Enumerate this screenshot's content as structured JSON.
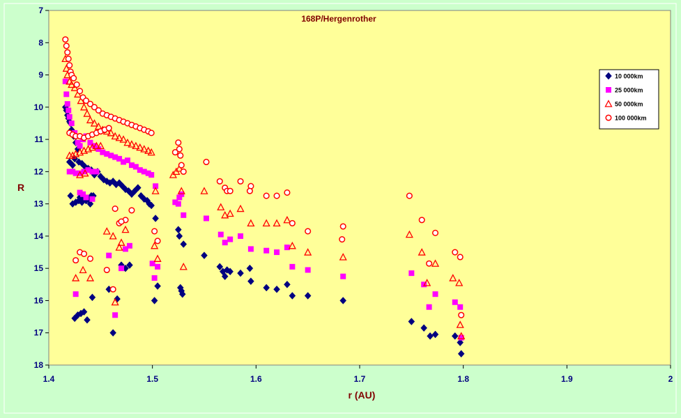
{
  "colors": {
    "chart_area": "#ccffcc",
    "plot_area": "#ffff99",
    "text": "#800000",
    "axis_text": "#000080",
    "series": [
      "#000080",
      "#ff00ff",
      "#ff0000",
      "#ff0000"
    ]
  },
  "chart_data": {
    "type": "scatter",
    "title": "168P/Hergenrother",
    "xlabel": "r (AU)",
    "ylabel": "R",
    "xlim": [
      1.4,
      2.0
    ],
    "ylim": [
      7,
      18
    ],
    "y_inverted": true,
    "x_ticks": [
      "1.4",
      "1.5",
      "1.6",
      "1.7",
      "1.8",
      "1.9",
      "2"
    ],
    "y_ticks": [
      "7",
      "8",
      "9",
      "10",
      "11",
      "12",
      "13",
      "14",
      "15",
      "16",
      "17",
      "18"
    ],
    "grid": false,
    "legend_position": "top-right",
    "series": [
      {
        "name": "10 000km",
        "marker": "diamond",
        "x": [
          1.416,
          1.417,
          1.418,
          1.419,
          1.42,
          1.421,
          1.422,
          1.424,
          1.426,
          1.428,
          1.42,
          1.423,
          1.425,
          1.429,
          1.432,
          1.435,
          1.438,
          1.441,
          1.444,
          1.447,
          1.45,
          1.453,
          1.456,
          1.459,
          1.462,
          1.465,
          1.468,
          1.471,
          1.474,
          1.477,
          1.48,
          1.483,
          1.486,
          1.489,
          1.492,
          1.495,
          1.497,
          1.499,
          1.43,
          1.433,
          1.436,
          1.44,
          1.443,
          1.421,
          1.423,
          1.426,
          1.429,
          1.432,
          1.435,
          1.438,
          1.441,
          1.425,
          1.428,
          1.431,
          1.434,
          1.437,
          1.442,
          1.458,
          1.462,
          1.466,
          1.47,
          1.474,
          1.478,
          1.503,
          1.505,
          1.502,
          1.525,
          1.526,
          1.527,
          1.528,
          1.529,
          1.53,
          1.55,
          1.565,
          1.568,
          1.57,
          1.572,
          1.575,
          1.585,
          1.595,
          1.594,
          1.61,
          1.62,
          1.63,
          1.635,
          1.65,
          1.684,
          1.75,
          1.762,
          1.768,
          1.773,
          1.792,
          1.797,
          1.798
        ],
        "y": [
          10.0,
          10.1,
          10.25,
          10.35,
          10.45,
          10.5,
          10.7,
          10.9,
          11.1,
          11.3,
          11.7,
          11.8,
          11.6,
          11.7,
          11.75,
          11.85,
          11.9,
          11.95,
          12.1,
          12.0,
          12.15,
          12.25,
          12.3,
          12.35,
          12.3,
          12.4,
          12.35,
          12.45,
          12.55,
          12.6,
          12.7,
          12.6,
          12.5,
          12.75,
          12.85,
          12.9,
          13.0,
          13.05,
          12.8,
          12.85,
          12.9,
          13.0,
          12.75,
          12.75,
          13.0,
          12.95,
          12.9,
          12.95,
          12.85,
          12.85,
          12.75,
          16.55,
          16.45,
          16.4,
          16.35,
          16.6,
          15.9,
          15.65,
          17.0,
          15.95,
          14.9,
          15.0,
          14.9,
          13.45,
          15.55,
          16.0,
          13.8,
          14.0,
          15.6,
          15.7,
          15.8,
          14.25,
          14.6,
          14.95,
          15.1,
          15.25,
          15.05,
          15.1,
          15.15,
          15.4,
          15.0,
          15.6,
          15.65,
          15.5,
          15.85,
          15.85,
          16.0,
          16.65,
          16.85,
          17.1,
          17.05,
          17.1,
          17.3,
          17.65
        ]
      },
      {
        "name": "25 000km",
        "marker": "square",
        "x": [
          1.416,
          1.417,
          1.418,
          1.419,
          1.42,
          1.422,
          1.425,
          1.428,
          1.43,
          1.433,
          1.436,
          1.44,
          1.444,
          1.448,
          1.452,
          1.456,
          1.46,
          1.464,
          1.468,
          1.472,
          1.476,
          1.48,
          1.484,
          1.488,
          1.492,
          1.496,
          1.499,
          1.42,
          1.423,
          1.426,
          1.43,
          1.434,
          1.438,
          1.442,
          1.446,
          1.43,
          1.433,
          1.436,
          1.442,
          1.426,
          1.458,
          1.464,
          1.47,
          1.474,
          1.478,
          1.5,
          1.502,
          1.505,
          1.503,
          1.522,
          1.525,
          1.526,
          1.528,
          1.53,
          1.552,
          1.566,
          1.57,
          1.575,
          1.585,
          1.595,
          1.61,
          1.62,
          1.63,
          1.635,
          1.65,
          1.684,
          1.75,
          1.762,
          1.767,
          1.773,
          1.792,
          1.797,
          1.798
        ],
        "y": [
          9.2,
          9.6,
          9.9,
          10.1,
          10.3,
          10.5,
          10.8,
          11.1,
          11.2,
          11.0,
          10.9,
          11.1,
          11.2,
          11.3,
          11.4,
          11.45,
          11.5,
          11.55,
          11.6,
          11.7,
          11.65,
          11.8,
          11.85,
          11.95,
          12.0,
          12.05,
          12.1,
          12.0,
          12.0,
          12.05,
          12.05,
          12.0,
          11.95,
          12.0,
          12.0,
          12.65,
          12.7,
          12.8,
          12.85,
          15.8,
          14.6,
          16.45,
          15.0,
          14.4,
          14.3,
          14.85,
          15.3,
          14.95,
          12.45,
          12.95,
          13.0,
          12.8,
          12.7,
          13.35,
          13.45,
          13.95,
          14.2,
          14.1,
          14.0,
          14.4,
          14.45,
          14.5,
          14.35,
          14.95,
          15.05,
          15.25,
          15.15,
          15.5,
          16.2,
          15.8,
          16.05,
          16.2,
          17.15
        ]
      },
      {
        "name": "50 000km",
        "marker": "triangle",
        "x": [
          1.416,
          1.417,
          1.418,
          1.42,
          1.422,
          1.425,
          1.428,
          1.431,
          1.434,
          1.437,
          1.44,
          1.444,
          1.448,
          1.452,
          1.456,
          1.46,
          1.464,
          1.468,
          1.472,
          1.476,
          1.48,
          1.484,
          1.488,
          1.492,
          1.496,
          1.499,
          1.42,
          1.423,
          1.426,
          1.43,
          1.434,
          1.438,
          1.442,
          1.446,
          1.45,
          1.43,
          1.435,
          1.426,
          1.433,
          1.44,
          1.456,
          1.462,
          1.468,
          1.474,
          1.464,
          1.47,
          1.502,
          1.505,
          1.503,
          1.52,
          1.523,
          1.526,
          1.528,
          1.53,
          1.55,
          1.566,
          1.57,
          1.575,
          1.585,
          1.595,
          1.61,
          1.62,
          1.63,
          1.635,
          1.65,
          1.684,
          1.748,
          1.76,
          1.765,
          1.773,
          1.79,
          1.796,
          1.797,
          1.798
        ],
        "y": [
          8.5,
          8.8,
          9.0,
          9.2,
          9.3,
          9.4,
          9.6,
          9.8,
          10.0,
          10.2,
          10.4,
          10.5,
          10.6,
          10.7,
          10.75,
          10.8,
          10.9,
          10.95,
          11.0,
          11.1,
          11.15,
          11.2,
          11.25,
          11.3,
          11.35,
          11.4,
          11.5,
          11.5,
          11.45,
          11.4,
          11.35,
          11.3,
          11.25,
          11.2,
          11.2,
          12.1,
          12.05,
          15.3,
          15.05,
          15.3,
          13.85,
          14.0,
          14.35,
          13.8,
          16.05,
          14.2,
          14.3,
          14.7,
          12.6,
          12.1,
          12.0,
          11.9,
          12.6,
          14.95,
          12.6,
          13.1,
          13.35,
          13.3,
          13.15,
          13.6,
          13.6,
          13.6,
          13.5,
          14.3,
          14.5,
          14.65,
          13.95,
          14.5,
          15.45,
          14.85,
          15.3,
          15.45,
          16.75,
          17.1
        ]
      },
      {
        "name": "100 000km",
        "marker": "circle",
        "x": [
          1.416,
          1.417,
          1.418,
          1.419,
          1.42,
          1.421,
          1.422,
          1.424,
          1.427,
          1.43,
          1.433,
          1.436,
          1.44,
          1.444,
          1.448,
          1.452,
          1.456,
          1.46,
          1.464,
          1.468,
          1.472,
          1.476,
          1.48,
          1.484,
          1.488,
          1.492,
          1.496,
          1.499,
          1.42,
          1.423,
          1.426,
          1.43,
          1.434,
          1.438,
          1.442,
          1.446,
          1.45,
          1.454,
          1.458,
          1.43,
          1.434,
          1.426,
          1.44,
          1.456,
          1.462,
          1.468,
          1.474,
          1.48,
          1.464,
          1.47,
          1.502,
          1.505,
          1.525,
          1.526,
          1.527,
          1.528,
          1.53,
          1.522,
          1.552,
          1.565,
          1.57,
          1.572,
          1.575,
          1.585,
          1.595,
          1.594,
          1.61,
          1.62,
          1.63,
          1.635,
          1.65,
          1.684,
          1.683,
          1.748,
          1.76,
          1.767,
          1.773,
          1.792,
          1.797,
          1.798
        ],
        "y": [
          7.9,
          8.1,
          8.3,
          8.5,
          8.7,
          8.9,
          9.0,
          9.1,
          9.3,
          9.5,
          9.7,
          9.8,
          9.9,
          10.0,
          10.1,
          10.2,
          10.25,
          10.3,
          10.35,
          10.4,
          10.45,
          10.5,
          10.55,
          10.6,
          10.65,
          10.7,
          10.75,
          10.8,
          10.8,
          10.85,
          10.9,
          10.9,
          10.95,
          10.9,
          10.85,
          10.8,
          10.75,
          10.7,
          10.65,
          14.5,
          14.55,
          14.75,
          14.7,
          15.05,
          15.65,
          13.6,
          13.5,
          13.2,
          13.15,
          13.55,
          13.85,
          14.15,
          11.1,
          11.3,
          11.5,
          11.8,
          12.0,
          11.4,
          11.7,
          12.3,
          12.5,
          12.6,
          12.6,
          12.3,
          12.45,
          12.6,
          12.75,
          12.75,
          12.65,
          13.6,
          13.85,
          13.7,
          14.1,
          12.75,
          13.5,
          14.85,
          13.9,
          14.5,
          14.65,
          16.45
        ]
      }
    ]
  }
}
